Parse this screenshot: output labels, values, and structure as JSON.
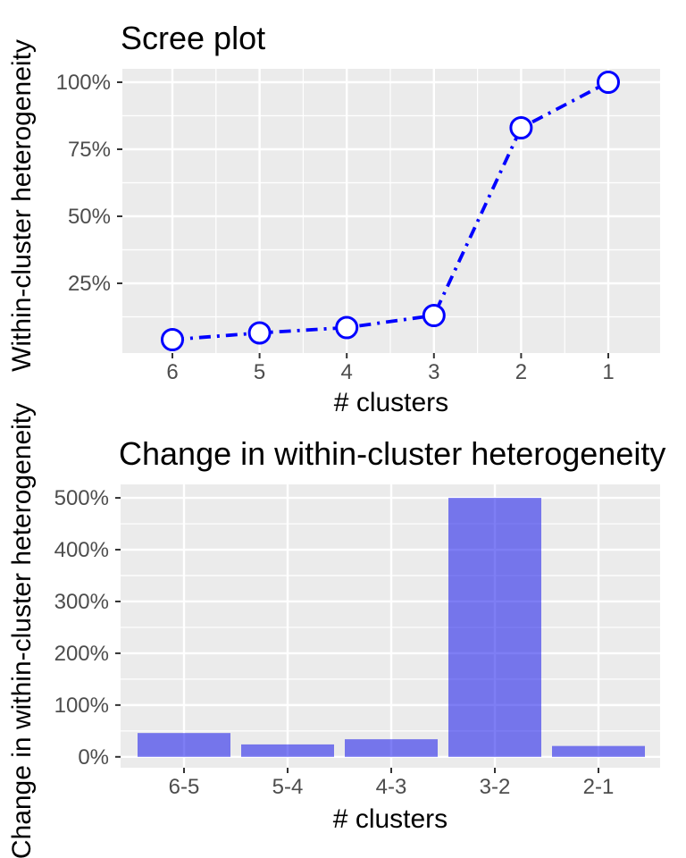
{
  "style": {
    "background": "#FFFFFF",
    "panel_background": "#EBEBEB",
    "grid_color": "#FFFFFF",
    "title_color": "#000000",
    "axis_title_color": "#000000",
    "axis_text_color": "#4D4D4D",
    "tick_mark_color": "#333333",
    "line_color": "#0000FF",
    "marker_fill": "#FFFFFF",
    "bar_color": "#1414EB",
    "bar_opacity": 0.55
  },
  "chart_data": [
    {
      "type": "line",
      "title": "Scree plot",
      "xlabel": "# clusters",
      "ylabel": "Within-cluster heterogeneity",
      "x_tick_labels": [
        "6",
        "5",
        "4",
        "3",
        "2",
        "1"
      ],
      "x_values": [
        6,
        5,
        4,
        3,
        2,
        1
      ],
      "x_axis_reversed": true,
      "y_values_percent": [
        4,
        6.5,
        8.5,
        13,
        83,
        100
      ],
      "y_tick_labels": [
        "25%",
        "50%",
        "75%",
        "100%"
      ],
      "y_tick_values": [
        25,
        50,
        75,
        100
      ],
      "y_minor_values": [
        12.5,
        37.5,
        62.5,
        87.5
      ],
      "ylim": [
        -1,
        105
      ],
      "line_style": "dotdash",
      "marker": "open-circle",
      "grid": true,
      "legend": false
    },
    {
      "type": "bar",
      "title": "Change in within-cluster heterogeneity",
      "xlabel": "# clusters",
      "ylabel": "Change in within-cluster heterogeneity",
      "categories": [
        "6-5",
        "5-4",
        "4-3",
        "3-2",
        "2-1"
      ],
      "values_percent": [
        46,
        24,
        34,
        500,
        21
      ],
      "y_tick_labels": [
        "0%",
        "100%",
        "200%",
        "300%",
        "400%",
        "500%"
      ],
      "y_tick_values": [
        0,
        100,
        200,
        300,
        400,
        500
      ],
      "y_minor_values": [
        50,
        150,
        250,
        350,
        450
      ],
      "ylim": [
        -21,
        526
      ],
      "grid": true,
      "legend": false
    }
  ]
}
